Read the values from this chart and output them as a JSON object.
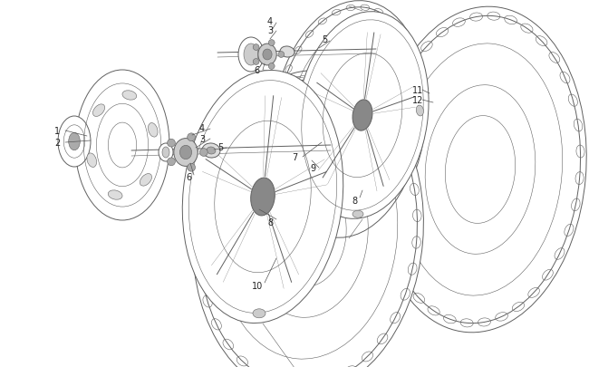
{
  "bg_color": "#ffffff",
  "lc": "#606060",
  "lc2": "#888888",
  "fig_width": 6.5,
  "fig_height": 4.06,
  "dpi": 100,
  "label_fs": 7,
  "label_color": "#222222"
}
